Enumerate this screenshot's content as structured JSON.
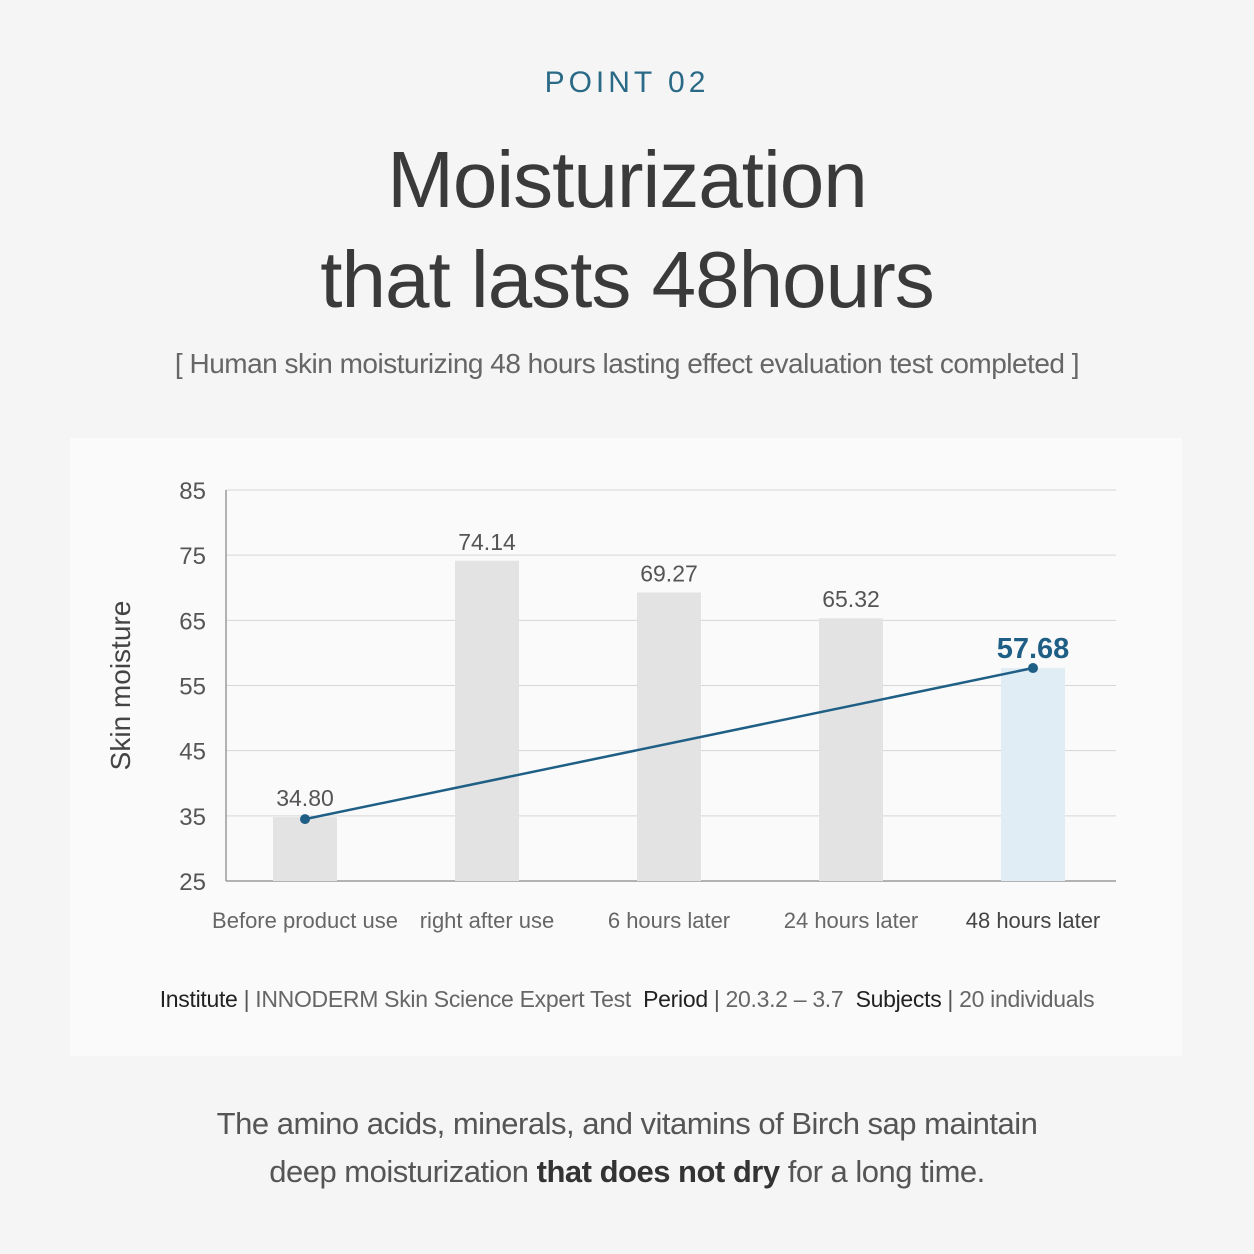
{
  "header": {
    "point_label": "POINT 02",
    "title_line1": "Moisturization",
    "title_line2": "that lasts 48hours",
    "subtitle": "[ Human skin moisturizing 48 hours lasting effect evaluation test completed ]"
  },
  "chart_data": {
    "type": "bar",
    "ylabel": "Skin moisture",
    "xlabel": "",
    "ylim": [
      25,
      85
    ],
    "yticks": [
      "85",
      "75",
      "65",
      "55",
      "45",
      "35",
      "25"
    ],
    "categories": [
      "Before product use",
      "right after use",
      "6 hours later",
      "24 hours later",
      "48 hours later"
    ],
    "values": [
      34.8,
      74.14,
      69.27,
      65.32,
      57.68
    ],
    "value_labels": [
      "34.80",
      "74.14",
      "69.27",
      "65.32",
      "57.68"
    ],
    "highlight_index": 4,
    "line": {
      "from_index": 0,
      "to_index": 4,
      "color": "#1f5f86"
    },
    "grid": true,
    "colors": {
      "bar": "#e3e3e3",
      "highlight_bar": "#e1edf5",
      "highlight_text": "#1f5f86"
    }
  },
  "study_info": {
    "institute_label": "Institute",
    "institute_value": "INNODERM Skin Science Expert Test",
    "period_label": "Period",
    "period_value": "20.3.2 – 3.7",
    "subjects_label": "Subjects",
    "subjects_value": "20 individuals",
    "separator": "|"
  },
  "description": {
    "line1": "The amino acids, minerals, and vitamins of Birch sap maintain",
    "line2_before": "deep moisturization ",
    "line2_bold": "that does not dry",
    "line2_after": " for a long time."
  }
}
